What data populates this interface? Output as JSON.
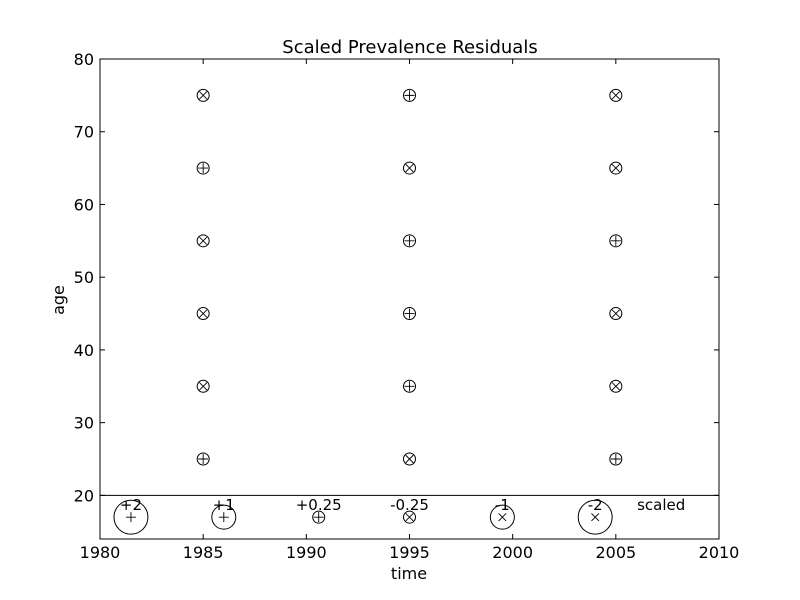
{
  "chart_data": {
    "type": "scatter",
    "title": "Scaled Prevalence Residuals",
    "xlabel": "time",
    "ylabel": "age",
    "xlim": [
      1980,
      2010
    ],
    "ylim": [
      14,
      80
    ],
    "xticks": [
      1980,
      1985,
      1990,
      1995,
      2000,
      2005,
      2010
    ],
    "yticks": [
      20,
      30,
      40,
      50,
      60,
      70,
      80
    ],
    "legend_separator_y": 20,
    "grid": false,
    "points": [
      {
        "x": 1985,
        "y": 25,
        "sign": "+",
        "residual": 0.25
      },
      {
        "x": 1985,
        "y": 35,
        "sign": "x",
        "residual": -0.25
      },
      {
        "x": 1985,
        "y": 45,
        "sign": "x",
        "residual": -0.25
      },
      {
        "x": 1985,
        "y": 55,
        "sign": "x",
        "residual": -0.25
      },
      {
        "x": 1985,
        "y": 65,
        "sign": "+",
        "residual": 0.25
      },
      {
        "x": 1985,
        "y": 75,
        "sign": "x",
        "residual": -0.25
      },
      {
        "x": 1995,
        "y": 25,
        "sign": "x",
        "residual": -0.25
      },
      {
        "x": 1995,
        "y": 35,
        "sign": "+",
        "residual": 0.25
      },
      {
        "x": 1995,
        "y": 45,
        "sign": "+",
        "residual": 0.25
      },
      {
        "x": 1995,
        "y": 55,
        "sign": "+",
        "residual": 0.25
      },
      {
        "x": 1995,
        "y": 65,
        "sign": "x",
        "residual": -0.25
      },
      {
        "x": 1995,
        "y": 75,
        "sign": "+",
        "residual": 0.25
      },
      {
        "x": 2005,
        "y": 25,
        "sign": "+",
        "residual": 0.25
      },
      {
        "x": 2005,
        "y": 35,
        "sign": "x",
        "residual": -0.25
      },
      {
        "x": 2005,
        "y": 45,
        "sign": "x",
        "residual": -0.25
      },
      {
        "x": 2005,
        "y": 55,
        "sign": "+",
        "residual": 0.25
      },
      {
        "x": 2005,
        "y": 65,
        "sign": "x",
        "residual": -0.25
      },
      {
        "x": 2005,
        "y": 75,
        "sign": "x",
        "residual": -0.25
      }
    ],
    "legend": {
      "y": 17,
      "items": [
        {
          "label": "+2",
          "x": 1981.5,
          "sign": "+",
          "residual": 2
        },
        {
          "label": "+1",
          "x": 1986,
          "sign": "+",
          "residual": 1
        },
        {
          "label": "+0.25",
          "x": 1990.6,
          "sign": "+",
          "residual": 0.25
        },
        {
          "label": "-0.25",
          "x": 1995,
          "sign": "x",
          "residual": -0.25
        },
        {
          "label": "-1",
          "x": 1999.5,
          "sign": "x",
          "residual": -1
        },
        {
          "label": "-2",
          "x": 2004,
          "sign": "x",
          "residual": -2
        }
      ],
      "scaled_label": "scaled",
      "scaled_x": 2007
    }
  }
}
